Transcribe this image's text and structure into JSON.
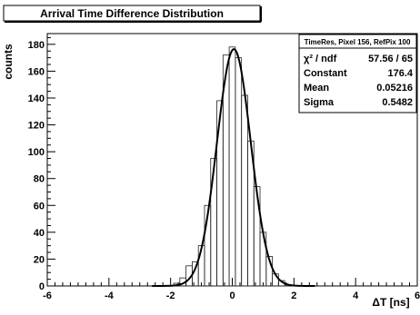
{
  "chart_data": {
    "type": "histogram",
    "title": "Arrival Time Difference Distribution",
    "xlabel": "ΔT [ns]",
    "ylabel": "counts",
    "xlim": [
      -6,
      6
    ],
    "ylim": [
      0,
      188
    ],
    "x_ticks": [
      -6,
      -4,
      -2,
      0,
      2,
      4,
      6
    ],
    "y_ticks": [
      0,
      20,
      40,
      60,
      80,
      100,
      120,
      140,
      160,
      180
    ],
    "grid": false,
    "bin_centers": [
      -2.0,
      -1.8,
      -1.6,
      -1.4,
      -1.2,
      -1.0,
      -0.8,
      -0.6,
      -0.4,
      -0.2,
      0.0,
      0.2,
      0.4,
      0.6,
      0.8,
      1.0,
      1.2,
      1.4,
      1.6,
      1.8,
      2.0
    ],
    "histogram": [
      0,
      2,
      6,
      15,
      18,
      30,
      60,
      95,
      138,
      172,
      178,
      170,
      142,
      108,
      74,
      40,
      22,
      9,
      4,
      1,
      0
    ],
    "fit": {
      "function": "gaus",
      "constant": 176.4,
      "mean": 0.05216,
      "sigma": 0.5482
    },
    "stats_box": {
      "title": "TimeRes, Pixel 156, RefPix 100",
      "rows": [
        {
          "label": "χ² / ndf",
          "value": "57.56 / 65"
        },
        {
          "label": "Constant",
          "value": "176.4"
        },
        {
          "label": "Mean",
          "value": "0.05216"
        },
        {
          "label": "Sigma",
          "value": "0.5482"
        }
      ]
    }
  }
}
